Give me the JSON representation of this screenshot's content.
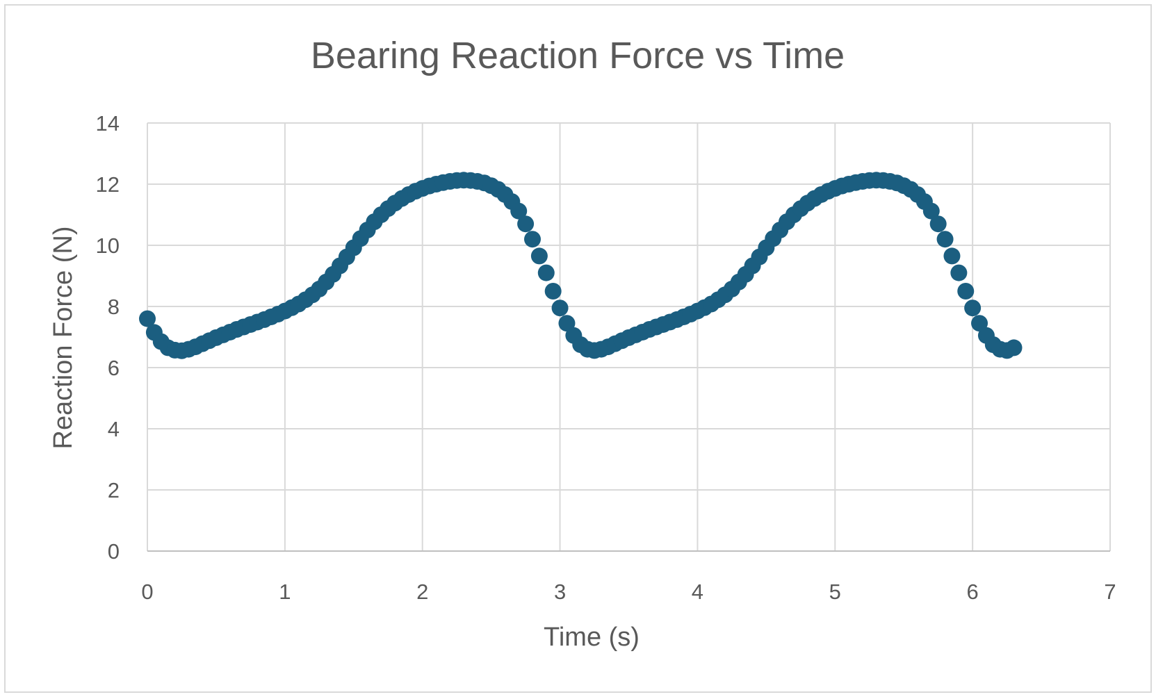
{
  "chart_data": {
    "type": "scatter",
    "title": "Bearing Reaction Force vs Time",
    "xlabel": "Time (s)",
    "ylabel": "Reaction Force (N)",
    "xlim": [
      0,
      7
    ],
    "ylim": [
      0,
      14
    ],
    "x_ticks": [
      "0",
      "1",
      "2",
      "3",
      "4",
      "5",
      "6",
      "7"
    ],
    "y_ticks": [
      "0",
      "2",
      "4",
      "6",
      "8",
      "10",
      "12",
      "14"
    ],
    "grid": true,
    "legend": "none",
    "marker_color": "#1b5e80",
    "series": [
      {
        "points": [
          [
            0.0,
            7.6
          ],
          [
            0.05,
            7.15
          ],
          [
            0.1,
            6.85
          ],
          [
            0.15,
            6.65
          ],
          [
            0.2,
            6.57
          ],
          [
            0.25,
            6.55
          ],
          [
            0.3,
            6.6
          ],
          [
            0.35,
            6.68
          ],
          [
            0.4,
            6.78
          ],
          [
            0.45,
            6.88
          ],
          [
            0.5,
            6.98
          ],
          [
            0.55,
            7.07
          ],
          [
            0.6,
            7.16
          ],
          [
            0.65,
            7.25
          ],
          [
            0.7,
            7.33
          ],
          [
            0.75,
            7.41
          ],
          [
            0.8,
            7.49
          ],
          [
            0.85,
            7.57
          ],
          [
            0.9,
            7.66
          ],
          [
            0.95,
            7.75
          ],
          [
            1.0,
            7.85
          ],
          [
            1.05,
            7.96
          ],
          [
            1.1,
            8.08
          ],
          [
            1.15,
            8.22
          ],
          [
            1.2,
            8.38
          ],
          [
            1.25,
            8.57
          ],
          [
            1.3,
            8.8
          ],
          [
            1.35,
            9.05
          ],
          [
            1.4,
            9.33
          ],
          [
            1.45,
            9.62
          ],
          [
            1.5,
            9.92
          ],
          [
            1.55,
            10.22
          ],
          [
            1.6,
            10.5
          ],
          [
            1.65,
            10.77
          ],
          [
            1.7,
            11.0
          ],
          [
            1.75,
            11.2
          ],
          [
            1.8,
            11.38
          ],
          [
            1.85,
            11.53
          ],
          [
            1.9,
            11.66
          ],
          [
            1.95,
            11.77
          ],
          [
            2.0,
            11.86
          ],
          [
            2.05,
            11.94
          ],
          [
            2.1,
            12.0
          ],
          [
            2.15,
            12.05
          ],
          [
            2.2,
            12.09
          ],
          [
            2.25,
            12.12
          ],
          [
            2.3,
            12.13
          ],
          [
            2.35,
            12.12
          ],
          [
            2.4,
            12.09
          ],
          [
            2.45,
            12.04
          ],
          [
            2.5,
            11.95
          ],
          [
            2.55,
            11.83
          ],
          [
            2.6,
            11.66
          ],
          [
            2.65,
            11.43
          ],
          [
            2.7,
            11.12
          ],
          [
            2.75,
            10.7
          ],
          [
            2.8,
            10.2
          ],
          [
            2.85,
            9.65
          ],
          [
            2.9,
            9.1
          ],
          [
            2.95,
            8.5
          ],
          [
            3.0,
            7.95
          ],
          [
            3.05,
            7.45
          ],
          [
            3.1,
            7.05
          ],
          [
            3.15,
            6.75
          ],
          [
            3.2,
            6.6
          ],
          [
            3.25,
            6.56
          ],
          [
            3.3,
            6.6
          ],
          [
            3.35,
            6.68
          ],
          [
            3.4,
            6.78
          ],
          [
            3.45,
            6.88
          ],
          [
            3.5,
            6.98
          ],
          [
            3.55,
            7.07
          ],
          [
            3.6,
            7.16
          ],
          [
            3.65,
            7.25
          ],
          [
            3.7,
            7.33
          ],
          [
            3.75,
            7.41
          ],
          [
            3.8,
            7.49
          ],
          [
            3.85,
            7.57
          ],
          [
            3.9,
            7.66
          ],
          [
            3.95,
            7.75
          ],
          [
            4.0,
            7.85
          ],
          [
            4.05,
            7.96
          ],
          [
            4.1,
            8.08
          ],
          [
            4.15,
            8.22
          ],
          [
            4.2,
            8.38
          ],
          [
            4.25,
            8.57
          ],
          [
            4.3,
            8.8
          ],
          [
            4.35,
            9.05
          ],
          [
            4.4,
            9.33
          ],
          [
            4.45,
            9.62
          ],
          [
            4.5,
            9.92
          ],
          [
            4.55,
            10.22
          ],
          [
            4.6,
            10.5
          ],
          [
            4.65,
            10.77
          ],
          [
            4.7,
            11.0
          ],
          [
            4.75,
            11.2
          ],
          [
            4.8,
            11.38
          ],
          [
            4.85,
            11.53
          ],
          [
            4.9,
            11.66
          ],
          [
            4.95,
            11.77
          ],
          [
            5.0,
            11.86
          ],
          [
            5.05,
            11.94
          ],
          [
            5.1,
            12.0
          ],
          [
            5.15,
            12.05
          ],
          [
            5.2,
            12.09
          ],
          [
            5.25,
            12.12
          ],
          [
            5.3,
            12.13
          ],
          [
            5.35,
            12.12
          ],
          [
            5.4,
            12.09
          ],
          [
            5.45,
            12.04
          ],
          [
            5.5,
            11.95
          ],
          [
            5.55,
            11.83
          ],
          [
            5.6,
            11.66
          ],
          [
            5.65,
            11.43
          ],
          [
            5.7,
            11.12
          ],
          [
            5.75,
            10.7
          ],
          [
            5.8,
            10.2
          ],
          [
            5.85,
            9.65
          ],
          [
            5.9,
            9.1
          ],
          [
            5.95,
            8.5
          ],
          [
            6.0,
            7.95
          ],
          [
            6.05,
            7.45
          ],
          [
            6.1,
            7.05
          ],
          [
            6.15,
            6.75
          ],
          [
            6.2,
            6.6
          ],
          [
            6.25,
            6.56
          ],
          [
            6.3,
            6.65
          ]
        ]
      }
    ]
  }
}
